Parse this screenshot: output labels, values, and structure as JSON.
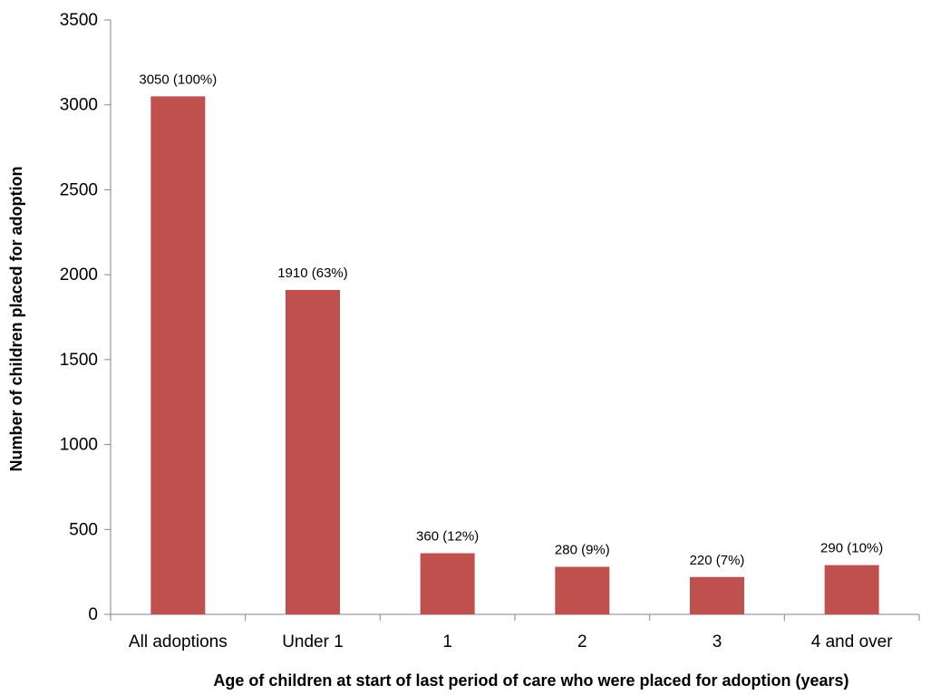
{
  "chart_data": {
    "type": "bar",
    "title": "",
    "xlabel": "Age of children at start of last period of care who were placed for adoption (years)",
    "ylabel": "Number of children placed for adoption",
    "categories": [
      "All adoptions",
      "Under 1",
      "1",
      "2",
      "3",
      "4 and over"
    ],
    "values": [
      3050,
      1910,
      360,
      280,
      220,
      290
    ],
    "data_labels": [
      "3050 (100%)",
      "1910 (63%)",
      "360 (12%)",
      "280 (9%)",
      "220 (7%)",
      "290 (10%)"
    ],
    "ylim": [
      0,
      3500
    ],
    "yticks": [
      0,
      500,
      1000,
      1500,
      2000,
      2500,
      3000,
      3500
    ],
    "grid": false,
    "legend": "none",
    "bar_color": "#c0504d"
  }
}
